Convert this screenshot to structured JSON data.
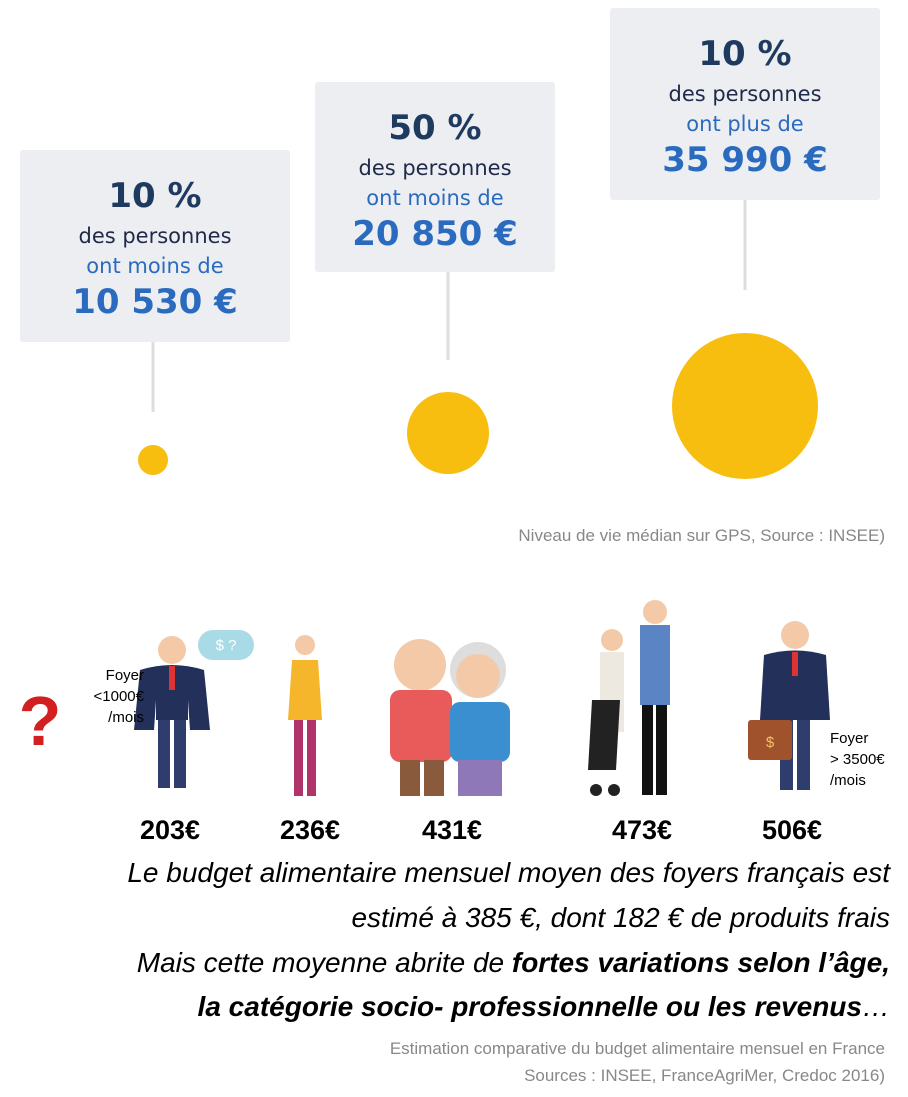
{
  "boxes": [
    {
      "percent": "10 %",
      "line1": "des personnes",
      "line2": "ont moins de",
      "amount": "10 530 €"
    },
    {
      "percent": "50 %",
      "line1": "des personnes",
      "line2": "ont moins de",
      "amount": "20 850 €"
    },
    {
      "percent": "10 %",
      "line1": "des personnes",
      "line2": "ont plus de",
      "amount": "35 990 €"
    }
  ],
  "source1": "Niveau de vie médian sur GPS, Source : INSEE)",
  "speech": "$ ?",
  "foyer_low": [
    "Foyer",
    "<1000€",
    "/mois"
  ],
  "foyer_high": [
    "Foyer",
    "> 3500€",
    "/mois"
  ],
  "budgets": [
    "203€",
    "236€",
    "431€",
    "473€",
    "506€"
  ],
  "paragraph": {
    "line1": "Le budget alimentaire mensuel moyen des foyers français est",
    "line2": "estimé à 385 €, dont 182 € de produits frais",
    "line3_plain": "Mais cette moyenne abrite de ",
    "line3_bold": "fortes variations selon l’âge,",
    "line4_bold": "la catégorie socio- professionnelle ou les revenus",
    "line4_end": "…"
  },
  "source2": [
    "Estimation comparative du budget alimentaire mensuel en France",
    "Sources : INSEE, FranceAgriMer, Credoc 2016)"
  ]
}
